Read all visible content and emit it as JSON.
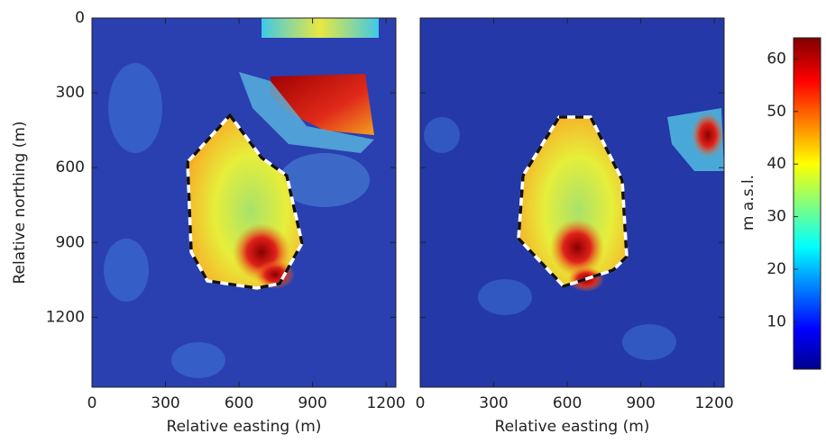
{
  "chart_data": [
    {
      "type": "heatmap",
      "xlabel": "Relative easting (m)",
      "ylabel": "Relative northing (m)",
      "xlim": [
        0,
        1240
      ],
      "xticks": [
        0,
        300,
        600,
        900,
        1200
      ],
      "ylim": [
        0,
        1480
      ],
      "yticks": [
        0,
        300,
        600,
        900,
        1200
      ],
      "y_reversed": true
    },
    {
      "type": "heatmap",
      "xlabel": "Relative easting (m)",
      "xlim": [
        0,
        1240
      ],
      "xticks": [
        0,
        300,
        600,
        900,
        1200
      ],
      "ylim": [
        0,
        1480
      ],
      "y_reversed": true
    }
  ],
  "colorbar": {
    "label": "m a.s.l.",
    "clim": [
      1,
      64
    ],
    "ticks": [
      10,
      20,
      30,
      40,
      50,
      60
    ],
    "colormap": "jet"
  }
}
